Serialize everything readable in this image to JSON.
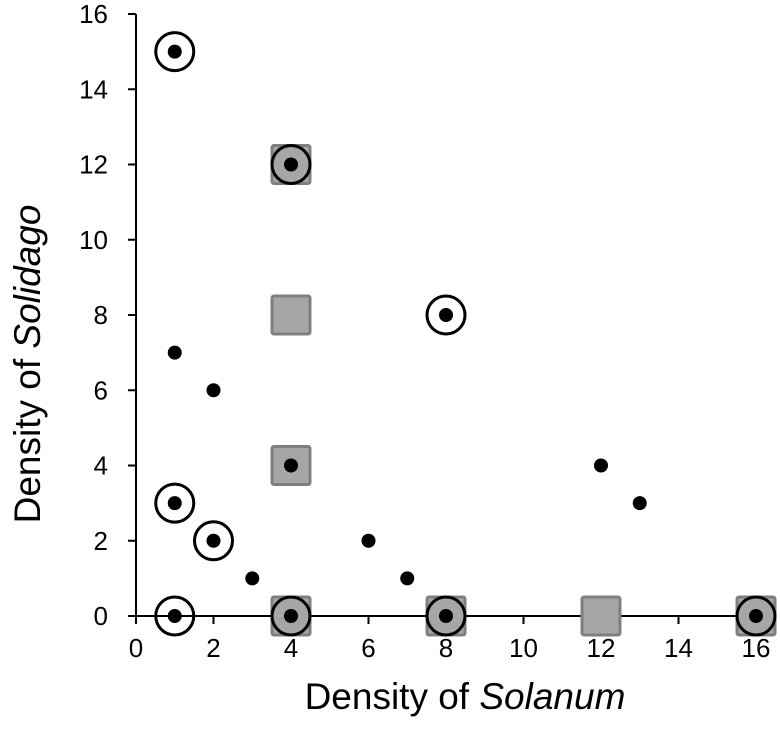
{
  "chart_data": {
    "type": "scatter",
    "title": "",
    "xlabel_prefix": "Density of ",
    "xlabel_species": "Solanum",
    "ylabel_prefix": "Density of ",
    "ylabel_species": "Solidago",
    "xlim": [
      0,
      16
    ],
    "ylim": [
      0,
      16
    ],
    "x_ticks": [
      0,
      2,
      4,
      6,
      8,
      10,
      12,
      14,
      16
    ],
    "y_ticks": [
      0,
      2,
      4,
      6,
      8,
      10,
      12,
      14,
      16
    ],
    "grid": false,
    "legend": "none",
    "colors": {
      "dot": "#000000",
      "circle": "#000000",
      "square_fill": "#a6a6a6",
      "square_stroke": "#7f7f7f"
    },
    "series": [
      {
        "marker": "square",
        "points": [
          [
            4,
            12
          ],
          [
            4,
            8
          ],
          [
            4,
            4
          ],
          [
            4,
            0
          ],
          [
            8,
            0
          ],
          [
            12,
            0
          ],
          [
            16,
            0
          ]
        ]
      },
      {
        "marker": "open-circle",
        "points": [
          [
            1,
            15
          ],
          [
            4,
            12
          ],
          [
            8,
            8
          ],
          [
            1,
            3
          ],
          [
            2,
            2
          ],
          [
            1,
            0
          ],
          [
            4,
            0
          ],
          [
            8,
            0
          ],
          [
            16,
            0
          ]
        ]
      },
      {
        "marker": "dot",
        "points": [
          [
            1,
            15
          ],
          [
            4,
            12
          ],
          [
            8,
            8
          ],
          [
            1,
            7
          ],
          [
            2,
            6
          ],
          [
            4,
            4
          ],
          [
            12,
            4
          ],
          [
            13,
            3
          ],
          [
            1,
            3
          ],
          [
            2,
            2
          ],
          [
            6,
            2
          ],
          [
            3,
            1
          ],
          [
            7,
            1
          ],
          [
            1,
            0
          ],
          [
            4,
            0
          ],
          [
            8,
            0
          ],
          [
            16,
            0
          ]
        ]
      }
    ]
  }
}
